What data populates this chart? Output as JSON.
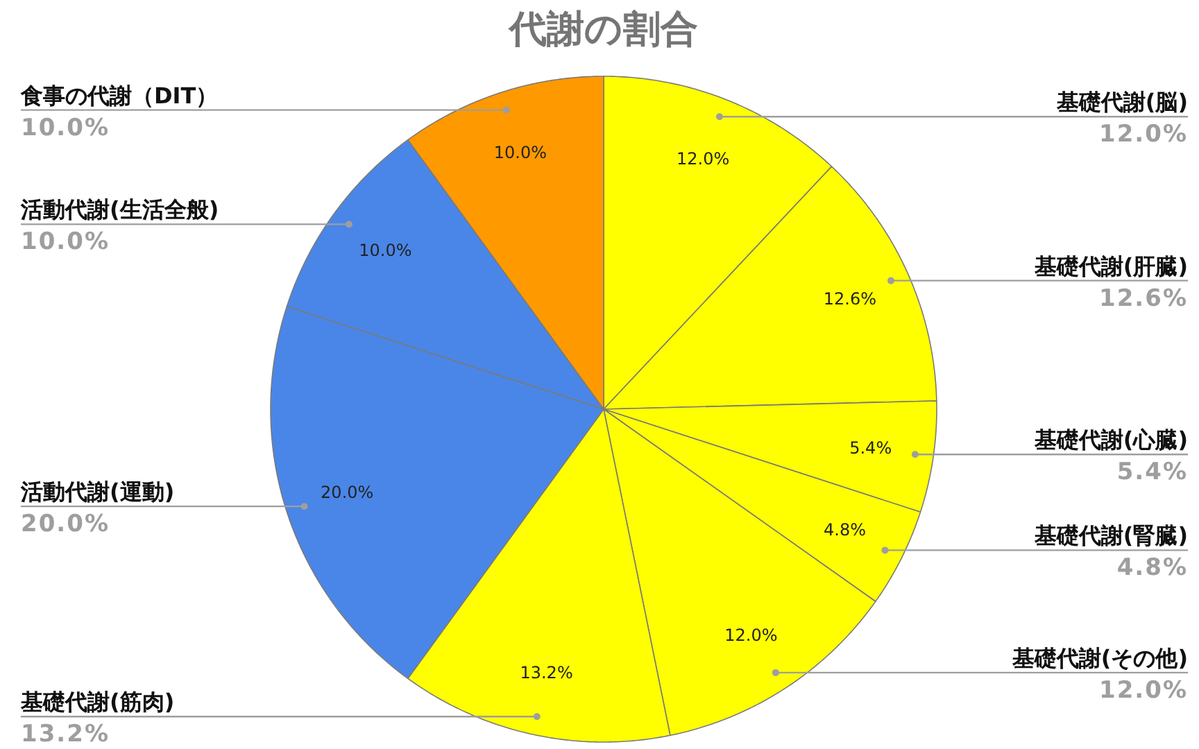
{
  "chart_data": {
    "type": "pie",
    "title": "代謝の割合",
    "categories": [
      "基礎代謝(脳)",
      "基礎代謝(肝臓)",
      "基礎代謝(心臓)",
      "基礎代謝(腎臓)",
      "基礎代謝(その他)",
      "基礎代謝(筋肉)",
      "活動代謝(運動)",
      "活動代謝(生活全般)",
      "食事の代謝（DIT）"
    ],
    "values": [
      12.0,
      12.6,
      5.4,
      4.8,
      12.0,
      13.2,
      20.0,
      10.0,
      10.0
    ],
    "colors": [
      "#ffff00",
      "#ffff00",
      "#ffff00",
      "#ffff00",
      "#ffff00",
      "#ffff00",
      "#4a86e8",
      "#4a86e8",
      "#ff9900"
    ],
    "value_labels": [
      "12.0%",
      "12.6%",
      "5.4%",
      "4.8%",
      "12.0%",
      "13.2%",
      "20.0%",
      "10.0%",
      "10.0%"
    ]
  }
}
